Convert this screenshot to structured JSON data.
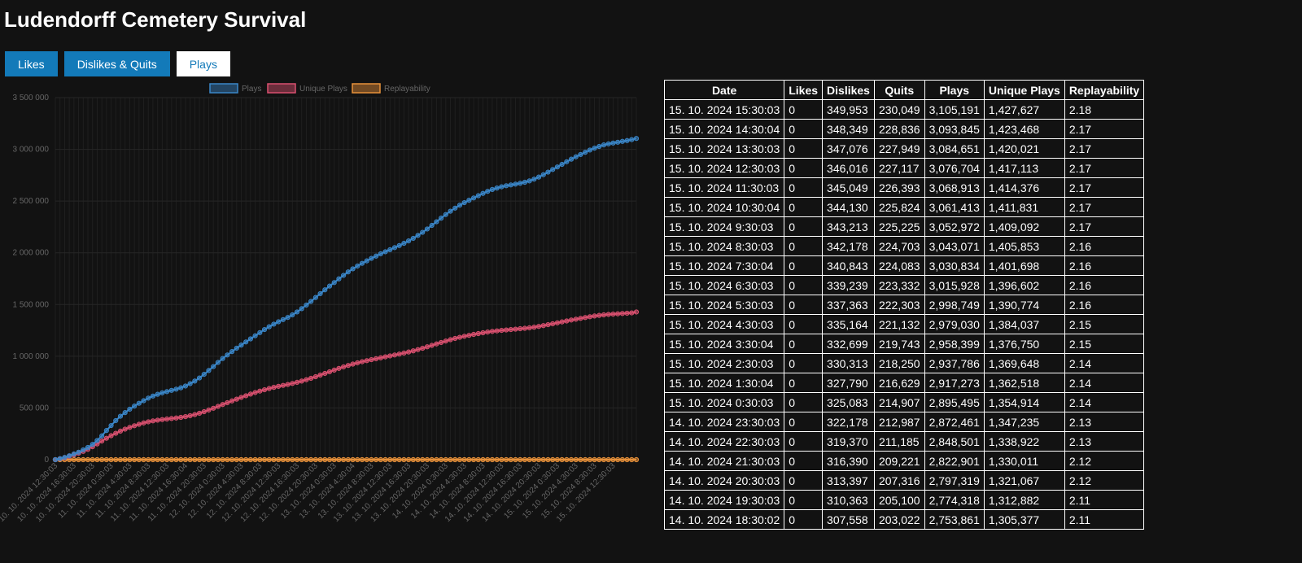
{
  "page": {
    "title": "Ludendorff Cemetery Survival"
  },
  "tabs": [
    {
      "label": "Likes",
      "active": false
    },
    {
      "label": "Dislikes & Quits",
      "active": false
    },
    {
      "label": "Plays",
      "active": true
    }
  ],
  "colors": {
    "plays": "#3a86c8",
    "unique_plays": "#d9506f",
    "replayability": "#e8913a",
    "tab": "#137ab9"
  },
  "chart_data": {
    "type": "line",
    "grid": true,
    "legend_position": "top",
    "ylim": [
      0,
      3500000
    ],
    "y_ticks": [
      "0",
      "500 000",
      "1 000 000",
      "1 500 000",
      "2 000 000",
      "2 500 000",
      "3 000 000",
      "3 500 000"
    ],
    "x_tick_labels": [
      "10. 10. 2024 12:30:03",
      "10. 10. 2024 16:30:03",
      "10. 10. 2024 20:30:03",
      "11. 10. 2024 0:30:03",
      "11. 10. 2024 4:30:03",
      "11. 10. 2024 8:30:03",
      "11. 10. 2024 12:30:03",
      "11. 10. 2024 16:30:04",
      "11. 10. 2024 20:30:03",
      "12. 10. 2024 0:30:03",
      "12. 10. 2024 4:30:03",
      "12. 10. 2024 8:30:03",
      "12. 10. 2024 12:30:03",
      "12. 10. 2024 16:30:03",
      "12. 10. 2024 20:30:03",
      "13. 10. 2024 0:30:03",
      "13. 10. 2024 4:30:04",
      "13. 10. 2024 8:30:03",
      "13. 10. 2024 12:30:03",
      "13. 10. 2024 16:30:03",
      "13. 10. 2024 20:30:03",
      "14. 10. 2024 0:30:03",
      "14. 10. 2024 4:30:03",
      "14. 10. 2024 8:30:03",
      "14. 10. 2024 12:30:03",
      "14. 10. 2024 16:30:03",
      "14. 10. 2024 20:30:03",
      "15. 10. 2024 0:30:03",
      "15. 10. 2024 4:30:03",
      "15. 10. 2024 8:30:03",
      "15. 10. 2024 12:30:03"
    ],
    "x_tick_step_points": 4,
    "series": [
      {
        "name": "Plays",
        "color": "#3a86c8",
        "values": [
          0,
          10000,
          22000,
          38000,
          55000,
          72000,
          95000,
          118000,
          148000,
          185000,
          230000,
          282000,
          330000,
          378000,
          420000,
          455000,
          488000,
          518000,
          545000,
          570000,
          595000,
          615000,
          632000,
          646000,
          658000,
          670000,
          682000,
          695000,
          712000,
          735000,
          760000,
          790000,
          825000,
          862000,
          900000,
          940000,
          978000,
          1012000,
          1045000,
          1078000,
          1108000,
          1138000,
          1168000,
          1198000,
          1228000,
          1258000,
          1285000,
          1310000,
          1333000,
          1354000,
          1375000,
          1400000,
          1428000,
          1460000,
          1495000,
          1530000,
          1568000,
          1605000,
          1642000,
          1678000,
          1712000,
          1748000,
          1782000,
          1815000,
          1845000,
          1872000,
          1898000,
          1922000,
          1946000,
          1968000,
          1990000,
          2010000,
          2030000,
          2050000,
          2070000,
          2092000,
          2115000,
          2140000,
          2168000,
          2198000,
          2230000,
          2265000,
          2300000,
          2335000,
          2370000,
          2402000,
          2432000,
          2460000,
          2485000,
          2508000,
          2530000,
          2552000,
          2574000,
          2594000,
          2612000,
          2626000,
          2638000,
          2648000,
          2656000,
          2664000,
          2672000,
          2682000,
          2695000,
          2712000,
          2732000,
          2755000,
          2780000,
          2805000,
          2830000,
          2855000,
          2880000,
          2905000,
          2928000,
          2950000,
          2972000,
          2993000,
          3012000,
          3028000,
          3043000,
          3053000,
          3061000,
          3069000,
          3077000,
          3085000,
          3094000,
          3105191
        ]
      },
      {
        "name": "Unique Plays",
        "color": "#d9506f",
        "values": [
          0,
          8000,
          18000,
          32000,
          46000,
          62000,
          80000,
          100000,
          125000,
          152000,
          180000,
          207000,
          232000,
          255000,
          276000,
          295000,
          312000,
          328000,
          342000,
          355000,
          366000,
          375000,
          382000,
          388000,
          393000,
          398000,
          403000,
          409000,
          416000,
          425000,
          436000,
          449000,
          464000,
          480000,
          497000,
          515000,
          533000,
          551000,
          568000,
          585000,
          602000,
          618000,
          634000,
          649000,
          663000,
          676000,
          688000,
          699000,
          709000,
          718000,
          727000,
          737000,
          748000,
          760000,
          773000,
          787000,
          802000,
          818000,
          834000,
          850000,
          866000,
          882000,
          897000,
          911000,
          924000,
          936000,
          947000,
          957000,
          967000,
          976000,
          985000,
          994000,
          1003000,
          1012000,
          1021000,
          1031000,
          1041000,
          1052000,
          1064000,
          1077000,
          1091000,
          1105000,
          1119000,
          1133000,
          1147000,
          1160000,
          1172000,
          1183000,
          1193000,
          1202000,
          1211000,
          1219000,
          1227000,
          1234000,
          1240000,
          1245000,
          1250000,
          1254000,
          1258000,
          1262000,
          1266000,
          1270000,
          1275000,
          1281000,
          1288000,
          1296000,
          1305000,
          1314000,
          1323000,
          1332000,
          1341000,
          1350000,
          1358000,
          1366000,
          1374000,
          1382000,
          1389000,
          1395000,
          1400000,
          1404000,
          1407000,
          1410000,
          1413000,
          1416000,
          1419000,
          1427627
        ]
      },
      {
        "name": "Replayability",
        "color": "#e8913a",
        "values": [
          2.18
        ]
      }
    ]
  },
  "table": {
    "headers": [
      "Date",
      "Likes",
      "Dislikes",
      "Quits",
      "Plays",
      "Unique Plays",
      "Replayability"
    ],
    "rows": [
      [
        "15. 10. 2024 15:30:03",
        "0",
        "349,953",
        "230,049",
        "3,105,191",
        "1,427,627",
        "2.18"
      ],
      [
        "15. 10. 2024 14:30:04",
        "0",
        "348,349",
        "228,836",
        "3,093,845",
        "1,423,468",
        "2.17"
      ],
      [
        "15. 10. 2024 13:30:03",
        "0",
        "347,076",
        "227,949",
        "3,084,651",
        "1,420,021",
        "2.17"
      ],
      [
        "15. 10. 2024 12:30:03",
        "0",
        "346,016",
        "227,117",
        "3,076,704",
        "1,417,113",
        "2.17"
      ],
      [
        "15. 10. 2024 11:30:03",
        "0",
        "345,049",
        "226,393",
        "3,068,913",
        "1,414,376",
        "2.17"
      ],
      [
        "15. 10. 2024 10:30:04",
        "0",
        "344,130",
        "225,824",
        "3,061,413",
        "1,411,831",
        "2.17"
      ],
      [
        "15. 10. 2024 9:30:03",
        "0",
        "343,213",
        "225,225",
        "3,052,972",
        "1,409,092",
        "2.17"
      ],
      [
        "15. 10. 2024 8:30:03",
        "0",
        "342,178",
        "224,703",
        "3,043,071",
        "1,405,853",
        "2.16"
      ],
      [
        "15. 10. 2024 7:30:04",
        "0",
        "340,843",
        "224,083",
        "3,030,834",
        "1,401,698",
        "2.16"
      ],
      [
        "15. 10. 2024 6:30:03",
        "0",
        "339,239",
        "223,332",
        "3,015,928",
        "1,396,602",
        "2.16"
      ],
      [
        "15. 10. 2024 5:30:03",
        "0",
        "337,363",
        "222,303",
        "2,998,749",
        "1,390,774",
        "2.16"
      ],
      [
        "15. 10. 2024 4:30:03",
        "0",
        "335,164",
        "221,132",
        "2,979,030",
        "1,384,037",
        "2.15"
      ],
      [
        "15. 10. 2024 3:30:04",
        "0",
        "332,699",
        "219,743",
        "2,958,399",
        "1,376,750",
        "2.15"
      ],
      [
        "15. 10. 2024 2:30:03",
        "0",
        "330,313",
        "218,250",
        "2,937,786",
        "1,369,648",
        "2.14"
      ],
      [
        "15. 10. 2024 1:30:04",
        "0",
        "327,790",
        "216,629",
        "2,917,273",
        "1,362,518",
        "2.14"
      ],
      [
        "15. 10. 2024 0:30:03",
        "0",
        "325,083",
        "214,907",
        "2,895,495",
        "1,354,914",
        "2.14"
      ],
      [
        "14. 10. 2024 23:30:03",
        "0",
        "322,178",
        "212,987",
        "2,872,461",
        "1,347,235",
        "2.13"
      ],
      [
        "14. 10. 2024 22:30:03",
        "0",
        "319,370",
        "211,185",
        "2,848,501",
        "1,338,922",
        "2.13"
      ],
      [
        "14. 10. 2024 21:30:03",
        "0",
        "316,390",
        "209,221",
        "2,822,901",
        "1,330,011",
        "2.12"
      ],
      [
        "14. 10. 2024 20:30:03",
        "0",
        "313,397",
        "207,316",
        "2,797,319",
        "1,321,067",
        "2.12"
      ],
      [
        "14. 10. 2024 19:30:03",
        "0",
        "310,363",
        "205,100",
        "2,774,318",
        "1,312,882",
        "2.11"
      ],
      [
        "14. 10. 2024 18:30:02",
        "0",
        "307,558",
        "203,022",
        "2,753,861",
        "1,305,377",
        "2.11"
      ]
    ]
  }
}
